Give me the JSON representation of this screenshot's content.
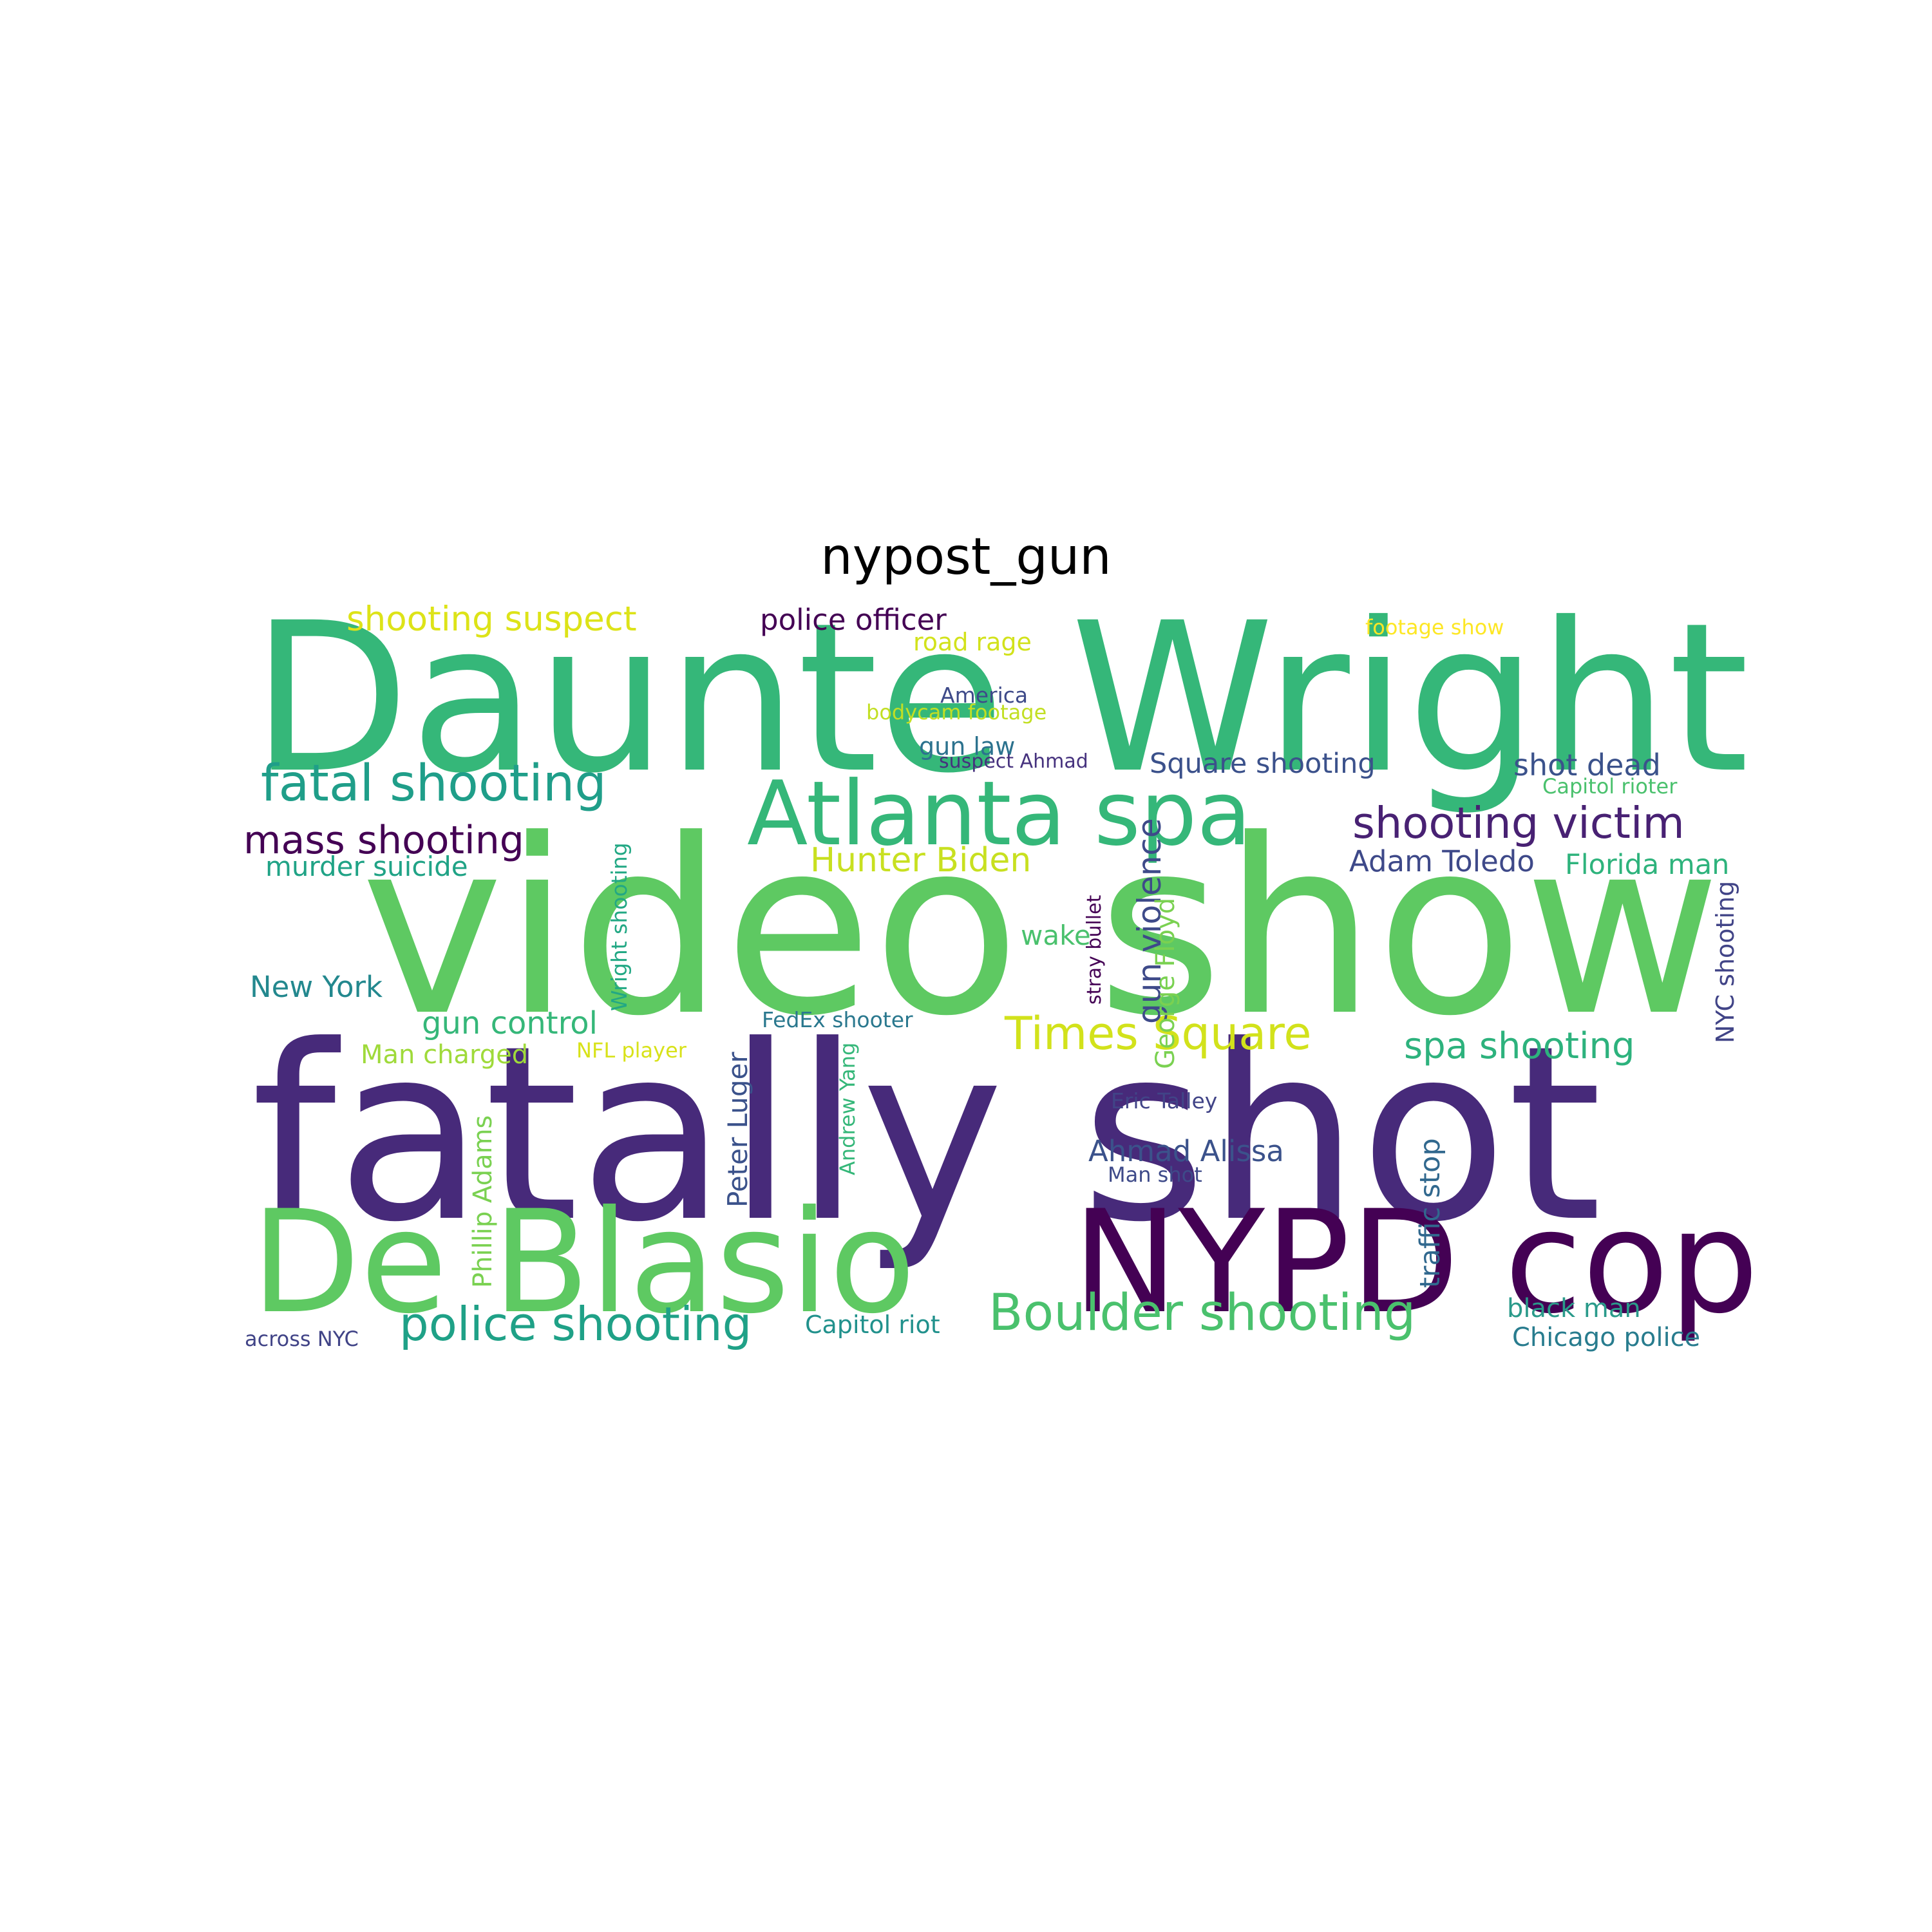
{
  "title": "nypost_gun",
  "words": [
    {
      "id": "daunte-wright",
      "text": "Daunte Wright",
      "color": "#35b779"
    },
    {
      "id": "video-show",
      "text": "video show",
      "color": "#5ec962"
    },
    {
      "id": "fatally-shot",
      "text": "fatally shot",
      "color": "#472a7a"
    },
    {
      "id": "de-blasio",
      "text": "De Blasio",
      "color": "#5ec962"
    },
    {
      "id": "nypd-cop",
      "text": "NYPD cop",
      "color": "#440154"
    },
    {
      "id": "atlanta-spa",
      "text": "Atlanta spa",
      "color": "#35b779"
    },
    {
      "id": "fatal-shooting",
      "text": "fatal shooting",
      "color": "#1f9e89"
    },
    {
      "id": "shooting-victim",
      "text": "shooting victim",
      "color": "#482173"
    },
    {
      "id": "boulder-shooting",
      "text": "Boulder shooting",
      "color": "#4ac16d"
    },
    {
      "id": "police-shooting",
      "text": "police shooting",
      "color": "#1fa187"
    },
    {
      "id": "times-square",
      "text": "Times Square",
      "color": "#d2e21b"
    },
    {
      "id": "mass-shooting",
      "text": "mass shooting",
      "color": "#440154"
    },
    {
      "id": "hunter-biden",
      "text": "Hunter Biden",
      "color": "#c8e020"
    },
    {
      "id": "shooting-suspect",
      "text": "shooting suspect",
      "color": "#dde318"
    },
    {
      "id": "police-officer",
      "text": "police officer",
      "color": "#440154"
    },
    {
      "id": "spa-shooting",
      "text": "spa shooting",
      "color": "#2db27d"
    },
    {
      "id": "gun-violence",
      "text": "gun violence",
      "color": "#3e4a89"
    },
    {
      "id": "square-shooting",
      "text": "Square shooting",
      "color": "#3b518b"
    },
    {
      "id": "shot-dead",
      "text": "shot dead",
      "color": "#3b528b"
    },
    {
      "id": "adam-toledo",
      "text": "Adam Toledo",
      "color": "#3e4989"
    },
    {
      "id": "florida-man",
      "text": "Florida man",
      "color": "#2eb37c"
    },
    {
      "id": "murder-suicide",
      "text": "murder suicide",
      "color": "#20a386"
    },
    {
      "id": "new-york",
      "text": "New York",
      "color": "#23888e"
    },
    {
      "id": "gun-control",
      "text": "gun control",
      "color": "#35b779"
    },
    {
      "id": "man-charged",
      "text": "Man charged",
      "color": "#9fda3a"
    },
    {
      "id": "nfl-player",
      "text": "NFL player",
      "color": "#d8e219"
    },
    {
      "id": "fedex-shooter",
      "text": "FedEx shooter",
      "color": "#2a788e"
    },
    {
      "id": "wake",
      "text": "wake",
      "color": "#4ac16d"
    },
    {
      "id": "road-rage",
      "text": "road rage",
      "color": "#d2e21b"
    },
    {
      "id": "america",
      "text": "America",
      "color": "#3e4a89"
    },
    {
      "id": "bodycam-footage",
      "text": "bodycam footage",
      "color": "#c2df23"
    },
    {
      "id": "gun-law",
      "text": "gun law",
      "color": "#2c728e"
    },
    {
      "id": "suspect-ahmad",
      "text": "suspect Ahmad",
      "color": "#46327e"
    },
    {
      "id": "footage-show",
      "text": "footage show",
      "color": "#fde725"
    },
    {
      "id": "capitol-rioter",
      "text": "Capitol rioter",
      "color": "#4ac16d"
    },
    {
      "id": "eric-talley",
      "text": "Eric Talley",
      "color": "#414487"
    },
    {
      "id": "ahmad-alissa",
      "text": "Ahmad Alissa",
      "color": "#3b528b"
    },
    {
      "id": "man-shot",
      "text": "Man shot",
      "color": "#3e4a89"
    },
    {
      "id": "black-man",
      "text": "black man",
      "color": "#2a9a8a"
    },
    {
      "id": "chicago-police",
      "text": "Chicago police",
      "color": "#287c8e"
    },
    {
      "id": "capitol-riot",
      "text": "Capitol riot",
      "color": "#21918c"
    },
    {
      "id": "across-nyc",
      "text": "across NYC",
      "color": "#414487"
    },
    {
      "id": "wright-shooting",
      "text": "Wright shooting",
      "color": "#22a884"
    },
    {
      "id": "george-floyd",
      "text": "George Floyd",
      "color": "#7ad151"
    },
    {
      "id": "stray-bullet",
      "text": "stray bullet",
      "color": "#440154"
    },
    {
      "id": "peter-luger",
      "text": "Peter Luger",
      "color": "#3b528b"
    },
    {
      "id": "andrew-yang",
      "text": "Andrew Yang",
      "color": "#35b779"
    },
    {
      "id": "phillip-adams",
      "text": "Phillip Adams",
      "color": "#7ad151"
    },
    {
      "id": "traffic-stop",
      "text": "traffic stop",
      "color": "#31688e"
    },
    {
      "id": "nyc-shooting",
      "text": "NYC shooting",
      "color": "#414487"
    }
  ]
}
